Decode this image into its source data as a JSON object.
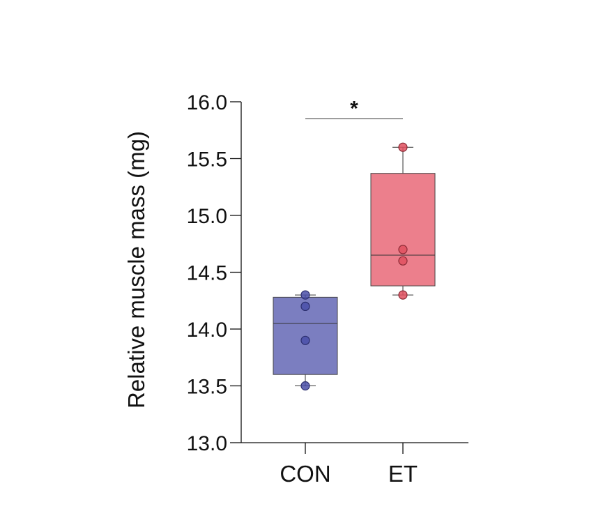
{
  "chart_data": {
    "type": "box",
    "ylabel": "Relative muscle mass (mg)",
    "ylim": [
      13.0,
      16.0
    ],
    "yticks": [
      13.0,
      13.5,
      14.0,
      14.5,
      15.0,
      15.5,
      16.0
    ],
    "ytick_labels": [
      "13.0",
      "13.5",
      "14.0",
      "14.5",
      "15.0",
      "15.5",
      "16.0"
    ],
    "categories": [
      "CON",
      "ET"
    ],
    "groups": [
      {
        "category": "CON",
        "color": "#7b7ec0",
        "point_color": "#4a4fa8",
        "edge_color": "#2c2f6e",
        "box": {
          "min": 13.5,
          "q1": 13.6,
          "median": 14.05,
          "q3": 14.28,
          "max": 14.3
        },
        "points": [
          13.5,
          13.9,
          14.2,
          14.3
        ]
      },
      {
        "category": "ET",
        "color": "#ec7f8c",
        "point_color": "#e0505f",
        "edge_color": "#8a2a35",
        "box": {
          "min": 14.3,
          "q1": 14.38,
          "median": 14.65,
          "q3": 15.37,
          "max": 15.6
        },
        "points": [
          14.3,
          14.6,
          14.7,
          15.6
        ]
      }
    ],
    "significance": {
      "between": [
        "CON",
        "ET"
      ],
      "label": "*",
      "y": 15.85
    }
  }
}
